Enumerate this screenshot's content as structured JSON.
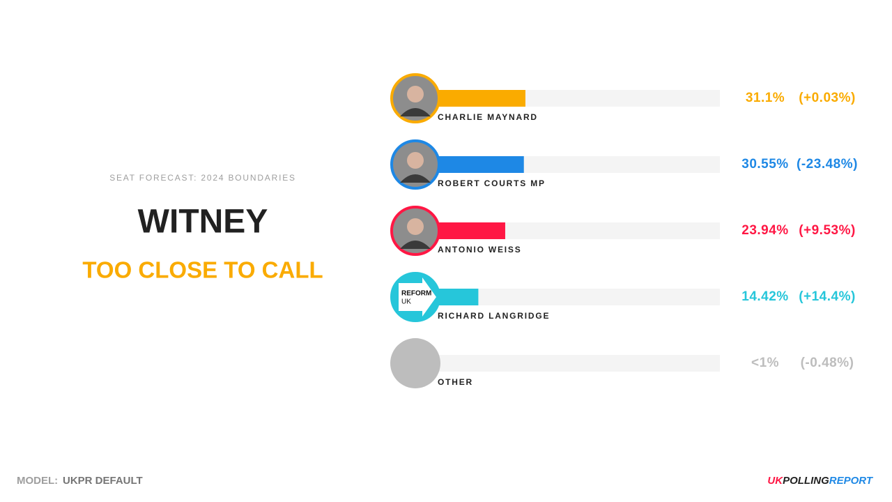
{
  "header": {
    "kicker": "SEAT FORECAST: 2024 BOUNDARIES",
    "seat": "WITNEY",
    "status": "TOO CLOSE TO CALL"
  },
  "chart_data": {
    "type": "bar",
    "orientation": "horizontal",
    "categories": [
      "CHARLIE MAYNARD",
      "ROBERT COURTS MP",
      "ANTONIO WEISS",
      "RICHARD LANGRIDGE",
      "OTHER"
    ],
    "values": [
      31.1,
      30.55,
      23.94,
      14.42,
      0.5
    ],
    "value_labels": [
      "31.1%",
      "30.55%",
      "23.94%",
      "14.42%",
      "<1%"
    ],
    "change_labels": [
      "(+0.03%)",
      "(-23.48%)",
      "(+9.53%)",
      "(+14.4%)",
      "(-0.48%)"
    ],
    "colors": [
      "#faab00",
      "#1e88e5",
      "#ff1744",
      "#26c6da",
      "#bdbdbd"
    ],
    "xlim": [
      0,
      100
    ]
  },
  "reform_logo": {
    "line1": "REFORM",
    "line2": "UK"
  },
  "footer": {
    "model_label": "MODEL:",
    "model": "UKPR DEFAULT",
    "brand_uk": "UK",
    "brand_polling": "POLLING",
    "brand_report": "REPORT"
  }
}
